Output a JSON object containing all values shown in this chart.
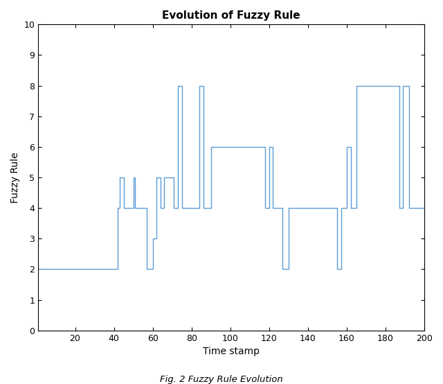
{
  "title": "Evolution of Fuzzy Rule",
  "xlabel": "Time stamp",
  "ylabel": "Fuzzy Rule",
  "caption": "Fig. 2 Fuzzy Rule Evolution",
  "line_color": "#5B9BD5",
  "line_width": 1.0,
  "xlim": [
    1,
    200
  ],
  "ylim": [
    0,
    10
  ],
  "xticks": [
    20,
    40,
    60,
    80,
    100,
    120,
    140,
    160,
    180,
    200
  ],
  "yticks": [
    0,
    1,
    2,
    3,
    4,
    5,
    6,
    7,
    8,
    9,
    10
  ],
  "x": [
    1,
    42,
    42,
    43,
    43,
    45,
    45,
    50,
    50,
    51,
    51,
    57,
    57,
    60,
    60,
    62,
    62,
    64,
    64,
    66,
    66,
    71,
    71,
    73,
    73,
    75,
    75,
    84,
    84,
    86,
    86,
    90,
    90,
    118,
    118,
    120,
    120,
    122,
    122,
    127,
    127,
    130,
    130,
    155,
    155,
    157,
    157,
    160,
    160,
    162,
    162,
    165,
    165,
    187,
    187,
    189,
    189,
    192,
    192,
    200
  ],
  "y": [
    2,
    2,
    4,
    4,
    5,
    5,
    4,
    4,
    5,
    5,
    4,
    4,
    2,
    2,
    3,
    3,
    5,
    5,
    4,
    4,
    5,
    5,
    4,
    4,
    8,
    8,
    4,
    4,
    8,
    8,
    4,
    4,
    6,
    6,
    4,
    4,
    6,
    6,
    4,
    4,
    2,
    2,
    4,
    4,
    2,
    2,
    4,
    4,
    6,
    6,
    4,
    4,
    8,
    8,
    4,
    4,
    8,
    8,
    4,
    4
  ]
}
